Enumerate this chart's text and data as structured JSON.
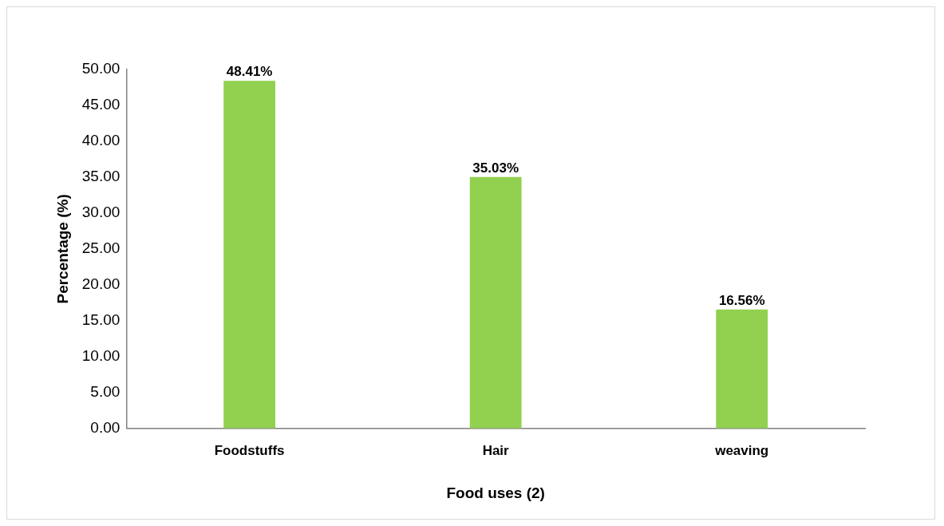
{
  "chart_data": {
    "type": "bar",
    "xlabel": "Food uses (2)",
    "ylabel": "Percentage (%)",
    "categories": [
      "Foodstuffs",
      "Hair",
      "weaving"
    ],
    "values": [
      48.41,
      35.03,
      16.56
    ],
    "value_labels": [
      "48.41%",
      "35.03%",
      "16.56%"
    ],
    "color": "#92d050",
    "ylim": [
      0,
      50
    ],
    "yticks": [
      {
        "value": 0,
        "label": "0.00"
      },
      {
        "value": 5,
        "label": "5.00"
      },
      {
        "value": 10,
        "label": "10.00"
      },
      {
        "value": 15,
        "label": "15.00"
      },
      {
        "value": 20,
        "label": "20.00"
      },
      {
        "value": 25,
        "label": "25.00"
      },
      {
        "value": 30,
        "label": "30.00"
      },
      {
        "value": 35,
        "label": "35.00"
      },
      {
        "value": 40,
        "label": "40.00"
      },
      {
        "value": 45,
        "label": "45.00"
      },
      {
        "value": 50,
        "label": "50.00"
      }
    ],
    "grid": false,
    "legend": false
  }
}
